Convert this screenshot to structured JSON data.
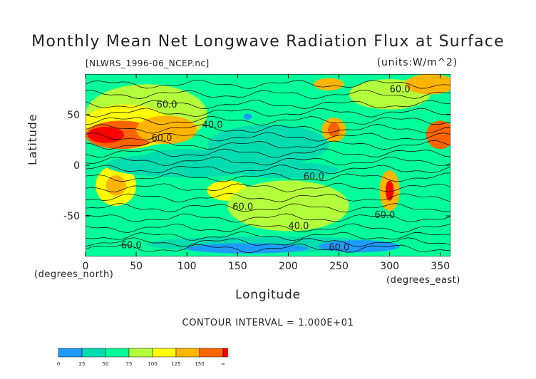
{
  "chart_data": {
    "type": "heatmap",
    "title": "Monthly Mean Net Longwave Radiation Flux at Surface",
    "file_label": "[NLWRS_1996-06_NCEP.nc]",
    "units_label": "(units:W/m^2)",
    "xlabel": "Longitude",
    "ylabel": "Latitude",
    "x_units_label": "(degrees_east)",
    "y_units_label": "(degrees_north)",
    "contour_interval_text": "CONTOUR INTERVAL = 1.000E+01",
    "xlim": [
      0,
      360
    ],
    "ylim": [
      -90,
      90
    ],
    "x_ticks": [
      0,
      50,
      100,
      150,
      200,
      250,
      300,
      350
    ],
    "y_ticks": [
      50,
      0,
      -50
    ],
    "contour_labels": [
      "60.0",
      "40.0",
      "60.0",
      "60.0",
      "60.0",
      "60.0",
      "40.0",
      "60.0",
      "60.0",
      "60.0"
    ],
    "colorbar": {
      "levels": [
        "0",
        "25",
        "50",
        "75",
        "100",
        "125",
        "150",
        "∞"
      ],
      "colors": [
        "#1e9bff",
        "#00dcb0",
        "#00ff9a",
        "#b4ff3c",
        "#ffff00",
        "#ffb400",
        "#ff6400",
        "#ff0000"
      ]
    }
  }
}
